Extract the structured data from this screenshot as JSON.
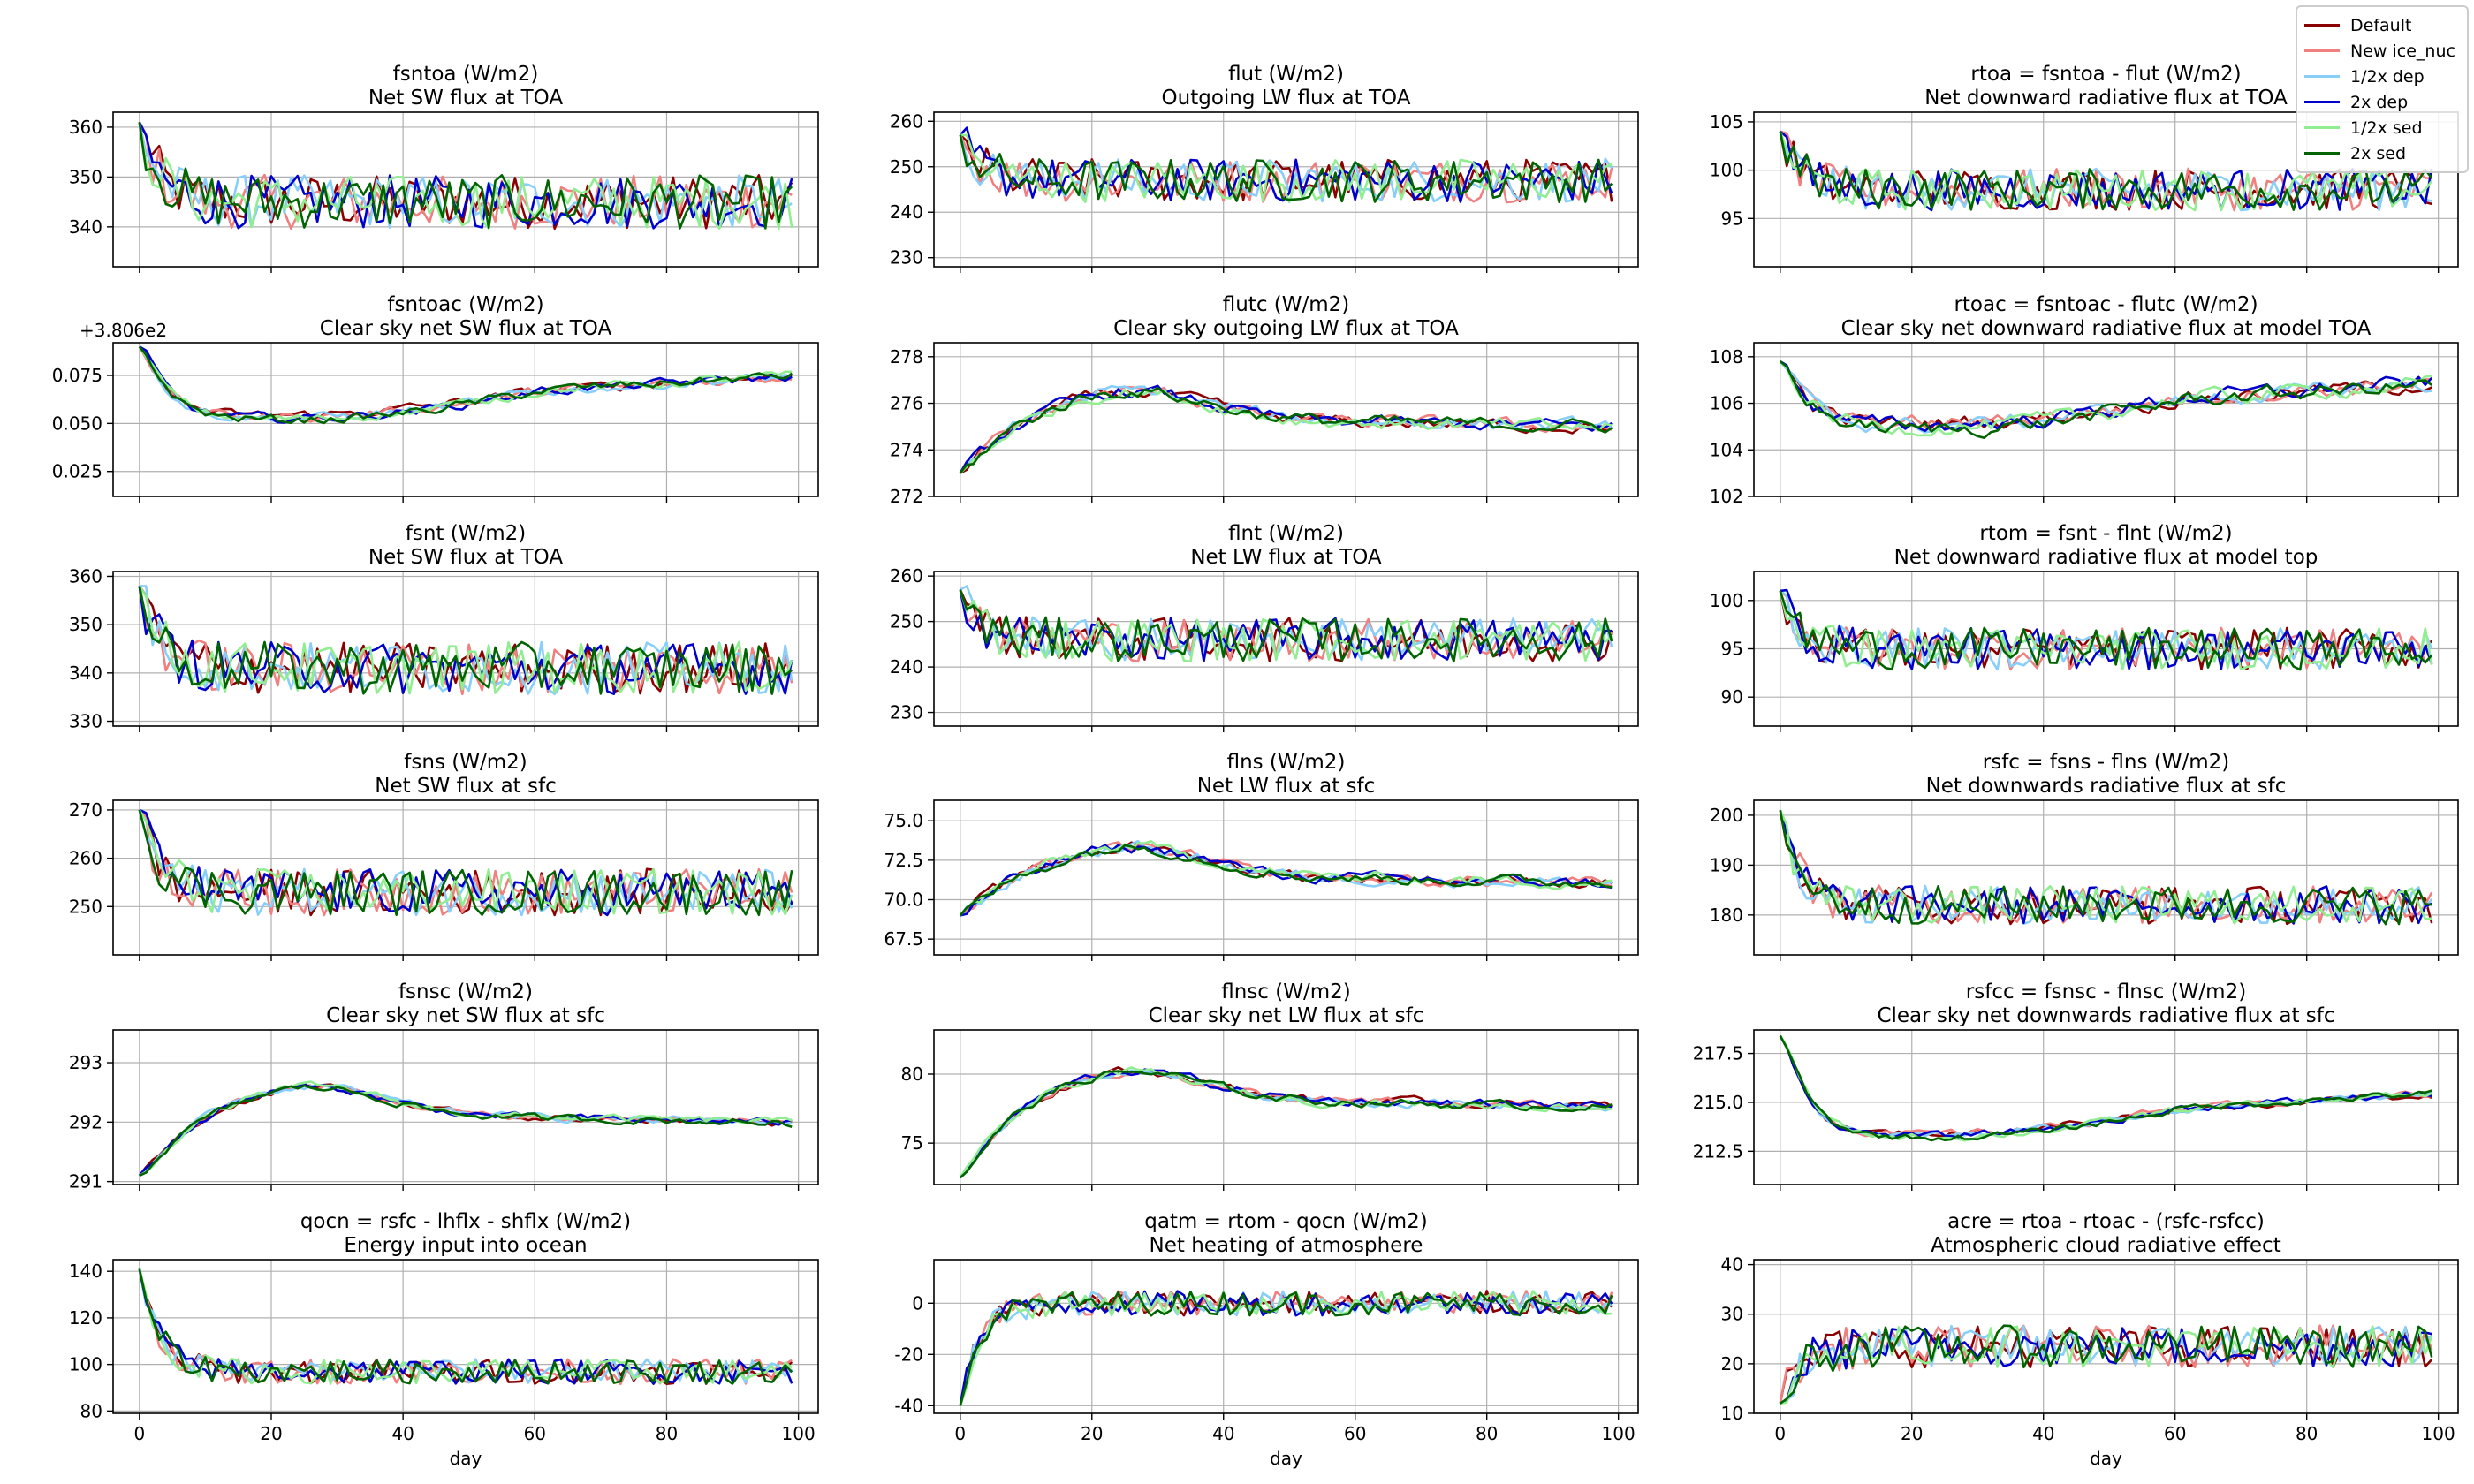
{
  "chart_data": {
    "type": "line",
    "legend": [
      {
        "name": "Default",
        "color": "#8b0000"
      },
      {
        "name": "New ice_nuc",
        "color": "#f08080"
      },
      {
        "name": "1/2x dep",
        "color": "#87cefa"
      },
      {
        "name": "2x dep",
        "color": "#0000cd"
      },
      {
        "name": "1/2x sed",
        "color": "#90ee90"
      },
      {
        "name": "2x sed",
        "color": "#006400"
      }
    ],
    "x_ticks": [
      0,
      20,
      40,
      60,
      80,
      100
    ],
    "x_range": [
      -4,
      103
    ],
    "xlabel": "day",
    "days": 100,
    "panels": [
      {
        "title": "fsntoa (W/m2)",
        "subtitle": "Net SW flux at TOA",
        "ylim": [
          332,
          363
        ],
        "yticks": [
          340,
          350,
          360
        ],
        "start": 361,
        "level": 345,
        "noise": 4.5
      },
      {
        "title": "flut (W/m2)",
        "subtitle": "Outgoing LW flux at TOA",
        "ylim": [
          228,
          262
        ],
        "yticks": [
          230,
          240,
          250,
          260
        ],
        "start": 257,
        "level": 247,
        "noise": 4
      },
      {
        "title": "rtoa = fsntoa - flut (W/m2)",
        "subtitle": "Net downward radiative flux at TOA",
        "ylim": [
          90,
          106
        ],
        "yticks": [
          95,
          100,
          105
        ],
        "start": 104,
        "level": 98,
        "noise": 1.8
      },
      {
        "title": "fsntoac (W/m2)",
        "subtitle": "Clear sky net SW flux at TOA",
        "ylim": [
          0.012,
          0.092
        ],
        "yticks": [
          0.025,
          0.05,
          0.075
        ],
        "yticklabels": [
          "0.025",
          "0.050",
          "0.075"
        ],
        "offset_text": "+3.806e2",
        "start": 0.09,
        "level": 0.055,
        "noise": 0.004,
        "smooth": true
      },
      {
        "title": "flutc (W/m2)",
        "subtitle": "Clear sky outgoing LW flux at TOA",
        "ylim": [
          272,
          278.6
        ],
        "yticks": [
          272,
          274,
          276,
          278
        ],
        "start": 273,
        "level": 275.5,
        "noise": 0.45,
        "rise": true
      },
      {
        "title": "rtoac = fsntoac - flutc (W/m2)",
        "subtitle": "Clear sky net downward radiative flux at model TOA",
        "ylim": [
          102,
          108.6
        ],
        "yticks": [
          102,
          104,
          106,
          108
        ],
        "start": 107.8,
        "level": 105.2,
        "noise": 0.55,
        "smooth": true
      },
      {
        "title": "fsnt (W/m2)",
        "subtitle": "Net SW flux at TOA",
        "ylim": [
          329,
          361
        ],
        "yticks": [
          330,
          340,
          350,
          360
        ],
        "start": 358,
        "level": 341,
        "noise": 4.5
      },
      {
        "title": "flnt (W/m2)",
        "subtitle": "Net LW flux at TOA",
        "ylim": [
          227,
          261
        ],
        "yticks": [
          230,
          240,
          250,
          260
        ],
        "start": 257,
        "level": 246,
        "noise": 4
      },
      {
        "title": "rtom = fsnt - flnt (W/m2)",
        "subtitle": "Net downward radiative flux at model top",
        "ylim": [
          87,
          103
        ],
        "yticks": [
          90,
          95,
          100
        ],
        "start": 101,
        "level": 95,
        "noise": 1.8
      },
      {
        "title": "fsns (W/m2)",
        "subtitle": "Net SW flux at sfc",
        "ylim": [
          240,
          272
        ],
        "yticks": [
          250,
          260,
          270
        ],
        "start": 270,
        "level": 253,
        "noise": 4
      },
      {
        "title": "flns (W/m2)",
        "subtitle": "Net LW flux at sfc",
        "ylim": [
          66.5,
          76.3
        ],
        "yticks": [
          67.5,
          70,
          72.5,
          75
        ],
        "yticklabels": [
          "67.5",
          "70.0",
          "72.5",
          "75.0"
        ],
        "start": 69,
        "level": 71.8,
        "noise": 0.6,
        "rise": true
      },
      {
        "title": "rsfc = fsns - flns (W/m2)",
        "subtitle": "Net downwards radiative flux at sfc",
        "ylim": [
          172,
          203
        ],
        "yticks": [
          180,
          190,
          200
        ],
        "start": 201,
        "level": 182,
        "noise": 3.2
      },
      {
        "title": "fsnsc (W/m2)",
        "subtitle": "Clear sky net SW flux at sfc",
        "ylim": [
          290.95,
          293.55
        ],
        "yticks": [
          291,
          292,
          293
        ],
        "start": 291.1,
        "level": 292.2,
        "noise": 0.1,
        "rise": true
      },
      {
        "title": "flnsc (W/m2)",
        "subtitle": "Clear sky net LW flux at sfc",
        "ylim": [
          72,
          83.2
        ],
        "yticks": [
          75,
          80
        ],
        "start": 72.5,
        "level": 78.5,
        "noise": 0.5,
        "rise": true
      },
      {
        "title": "rsfcc = fsnsc - flnsc (W/m2)",
        "subtitle": "Clear sky net downwards radiative flux at sfc",
        "ylim": [
          210.8,
          218.7
        ],
        "yticks": [
          212.5,
          215,
          217.5
        ],
        "yticklabels": [
          "212.5",
          "215.0",
          "217.5"
        ],
        "start": 218.4,
        "level": 213.5,
        "noise": 0.3,
        "smooth": true
      },
      {
        "title": "qocn = rsfc - lhflx - shflx (W/m2)",
        "subtitle": "Energy input into ocean",
        "ylim": [
          79,
          145
        ],
        "yticks": [
          80,
          100,
          120,
          140
        ],
        "start": 141,
        "level": 97,
        "noise": 4.5
      },
      {
        "title": "qatm = rtom - qocn (W/m2)",
        "subtitle": "Net heating of atmosphere",
        "ylim": [
          -43,
          17
        ],
        "yticks": [
          -40,
          -20,
          0
        ],
        "start": -40,
        "level": 0,
        "noise": 4
      },
      {
        "title": "acre = rtoa - rtoac - (rsfc-rsfcc)",
        "subtitle": "Atmospheric cloud radiative effect",
        "ylim": [
          10,
          41
        ],
        "yticks": [
          10,
          20,
          30,
          40
        ],
        "start": 12,
        "level": 23.5,
        "noise": 3.5
      }
    ]
  }
}
